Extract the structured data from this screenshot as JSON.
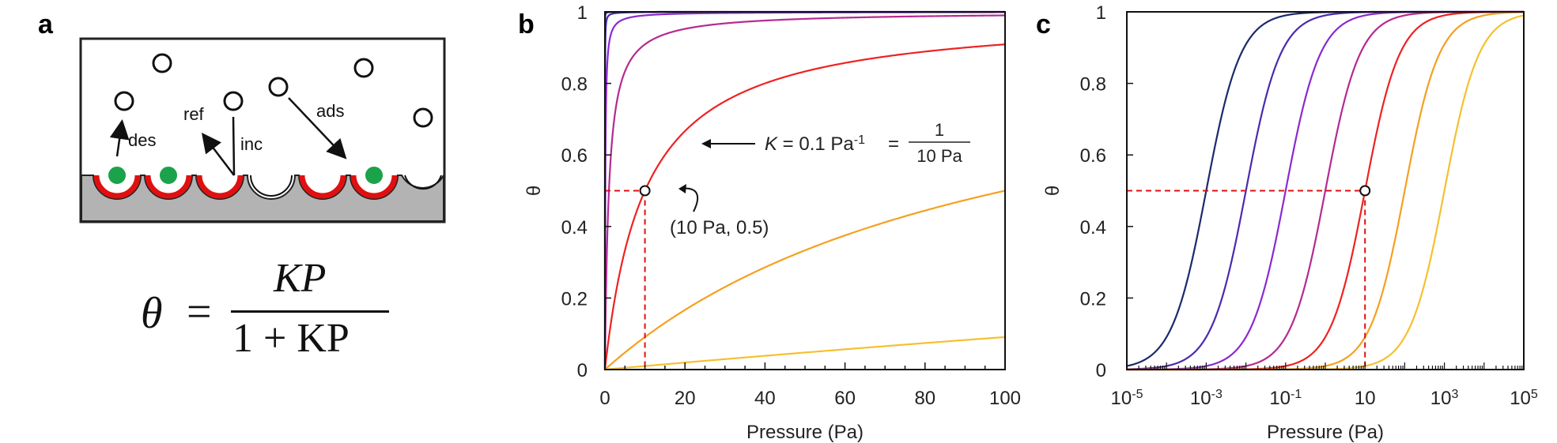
{
  "panels": {
    "a": "a",
    "b": "b",
    "c": "c"
  },
  "schematic": {
    "labels": {
      "des": "des",
      "ref": "ref",
      "inc": "inc",
      "ads": "ads"
    },
    "colors": {
      "surface": "#b3b3b3",
      "site": "#e01010",
      "adsorbate": "#1aa34a",
      "border": "#222222"
    }
  },
  "equation": {
    "lhs": "θ",
    "equals": "=",
    "numerator": "KP",
    "denominator": "1 + KP"
  },
  "chart_data": [
    {
      "panel": "b",
      "type": "line",
      "xlabel": "Pressure (Pa)",
      "ylabel": "θ",
      "xlim": [
        0,
        100
      ],
      "ylim": [
        0,
        1
      ],
      "xticks": [
        0,
        20,
        40,
        60,
        80,
        100
      ],
      "yticks": [
        0,
        0.2,
        0.4,
        0.6,
        0.8,
        1
      ],
      "ytick_labels": [
        "0",
        "0.2",
        "0.4",
        "0.6",
        "0.8",
        "1"
      ],
      "model": "theta = K*P/(1+K*P)",
      "series": [
        {
          "K": 1000,
          "color": "#1b2a6b"
        },
        {
          "K": 100,
          "color": "#4b2ab0"
        },
        {
          "K": 10,
          "color": "#8a2ad0"
        },
        {
          "K": 1,
          "color": "#b52a90"
        },
        {
          "K": 0.1,
          "color": "#ee2222"
        },
        {
          "K": 0.01,
          "color": "#f5a020"
        },
        {
          "K": 0.001,
          "color": "#f5c030"
        }
      ],
      "highlight_point": {
        "x": 10,
        "y": 0.5
      },
      "annotations": {
        "point_label": "(10 Pa, 0.5)",
        "k_label_main": "K = 0.1 Pa",
        "k_label_exp": "-1",
        "k_label_eq": "=",
        "frac_num": "1",
        "frac_den": "10 Pa"
      }
    },
    {
      "panel": "c",
      "type": "line",
      "xscale": "log",
      "xlabel": "Pressure (Pa)",
      "ylabel": "θ",
      "xlim": [
        1e-05,
        100000
      ],
      "ylim": [
        0,
        1
      ],
      "xtick_labels": [
        {
          "base": "10",
          "exp": "-5"
        },
        {
          "base": "10",
          "exp": "-3"
        },
        {
          "base": "10",
          "exp": "-1"
        },
        {
          "base": "10",
          "exp": ""
        },
        {
          "base": "10",
          "exp": "3"
        },
        {
          "base": "10",
          "exp": "5"
        }
      ],
      "yticks": [
        0,
        0.2,
        0.4,
        0.6,
        0.8,
        1
      ],
      "ytick_labels": [
        "0",
        "0.2",
        "0.4",
        "0.6",
        "0.8",
        "1"
      ],
      "model": "theta = K*P/(1+K*P)",
      "series": [
        {
          "K": 1000,
          "color": "#1b2a6b"
        },
        {
          "K": 100,
          "color": "#4b2ab0"
        },
        {
          "K": 10,
          "color": "#8a2ad0"
        },
        {
          "K": 1,
          "color": "#b52a90"
        },
        {
          "K": 0.1,
          "color": "#ee2222"
        },
        {
          "K": 0.01,
          "color": "#f5a020"
        },
        {
          "K": 0.001,
          "color": "#f5c030"
        }
      ],
      "highlight_point": {
        "x": 10,
        "y": 0.5
      }
    }
  ]
}
